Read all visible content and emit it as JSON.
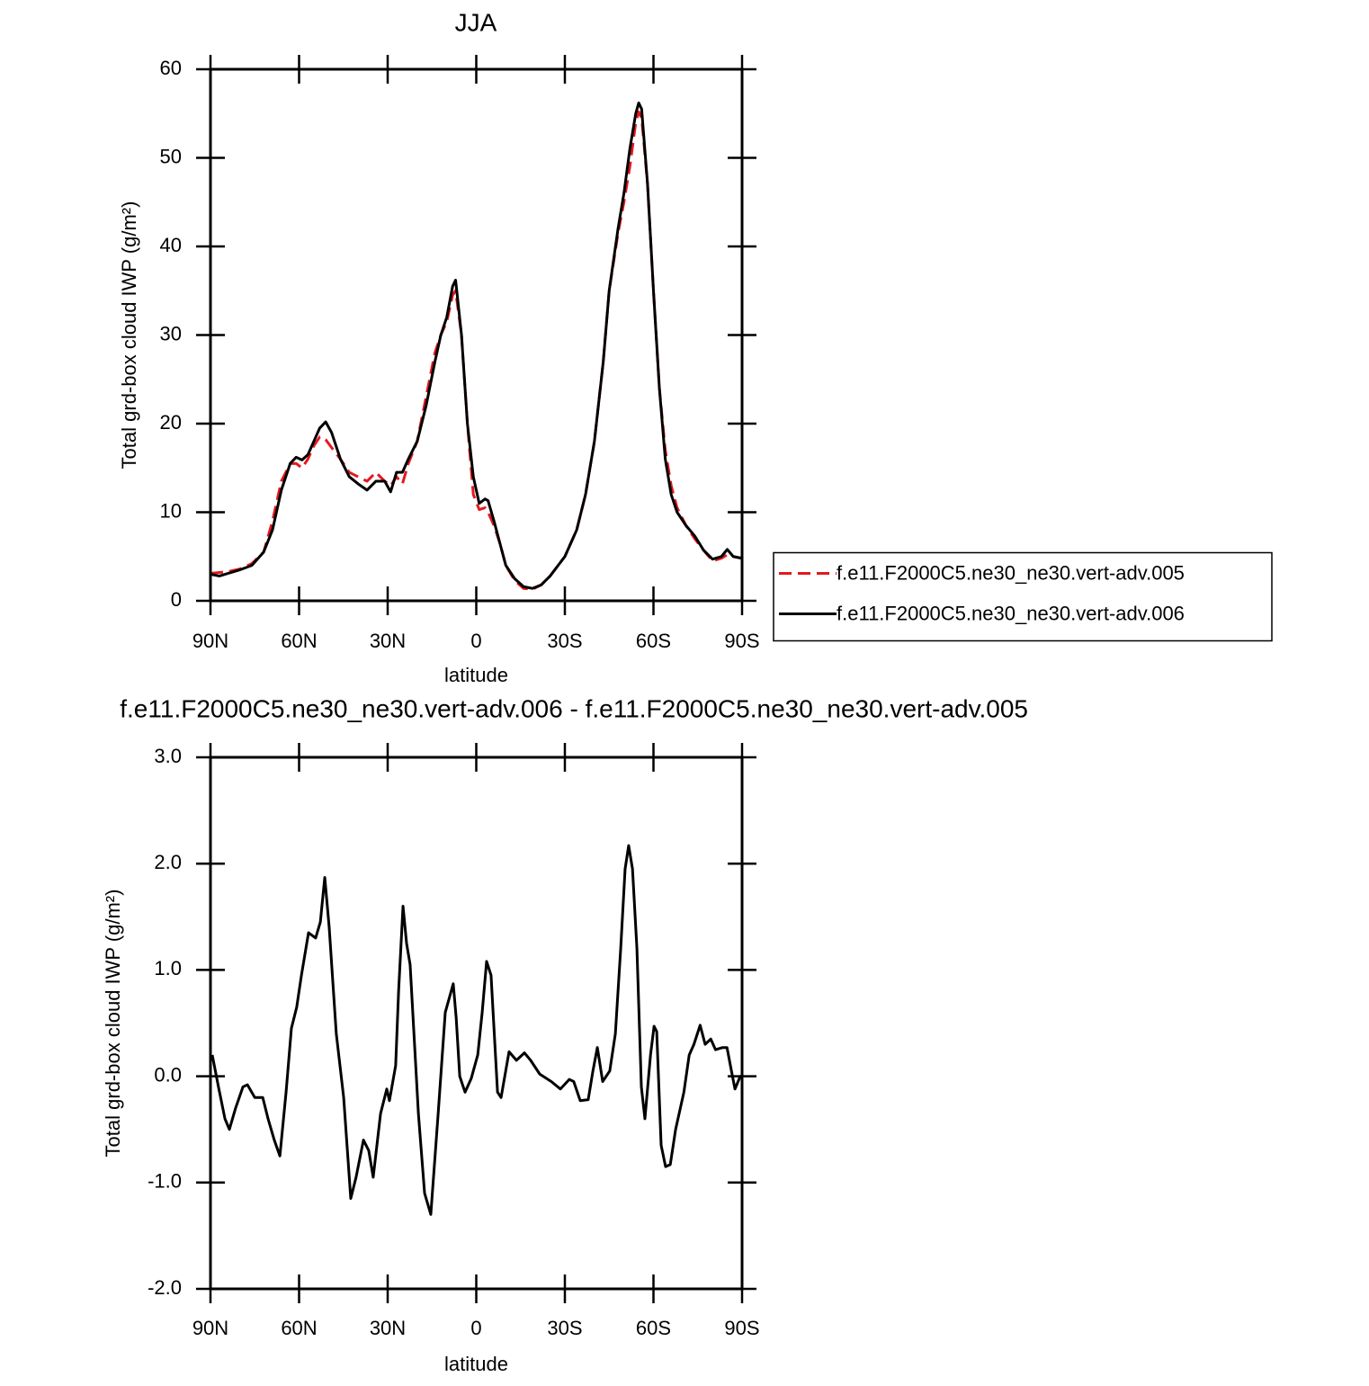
{
  "chart_data": [
    {
      "type": "line",
      "title": "JJA",
      "xlabel": "latitude",
      "ylabel": "Total grd-box cloud IWP (g/m²)",
      "xlim": [
        90,
        -90
      ],
      "xticks": [
        {
          "value": 90,
          "label": "90N"
        },
        {
          "value": 60,
          "label": "60N"
        },
        {
          "value": 30,
          "label": "30N"
        },
        0,
        {
          "value": -30,
          "label": "30S"
        },
        {
          "value": -60,
          "label": "60S"
        },
        {
          "value": -90,
          "label": "90S"
        }
      ],
      "ylim": [
        0,
        60
      ],
      "yticks": [
        0,
        10,
        20,
        30,
        40,
        50,
        60
      ],
      "legend": "right",
      "x": [
        90,
        87,
        84,
        80,
        76,
        72,
        69,
        66,
        63,
        61,
        59,
        57,
        55,
        53,
        51,
        49,
        46,
        43,
        40,
        37,
        34,
        31,
        29,
        27,
        25,
        23,
        20,
        17,
        14,
        12,
        10,
        8,
        7,
        5,
        3,
        1,
        -1,
        -3,
        -4,
        -6,
        -8,
        -10,
        -13,
        -16,
        -19,
        -22,
        -25,
        -30,
        -34,
        -37,
        -40,
        -43,
        -45,
        -48,
        -50,
        -52,
        -54,
        -55,
        -56,
        -58,
        -60,
        -62,
        -64,
        -66,
        -68,
        -71,
        -74,
        -77,
        -80,
        -83,
        -85,
        -87,
        -90
      ],
      "series": [
        {
          "name": "f.e11.F2000C5.ne30_ne30.vert-adv.005",
          "color": "#e3191e",
          "style": "dashed",
          "values": [
            3.1,
            3.2,
            3.3,
            3.6,
            4.2,
            5.5,
            9,
            13.5,
            15.5,
            15.5,
            15.0,
            16,
            17.5,
            18.5,
            18.2,
            17.3,
            16,
            14.5,
            14,
            13.5,
            14.5,
            13.5,
            13,
            14,
            13.2,
            15.5,
            18,
            23,
            28,
            30,
            31.5,
            34.5,
            35,
            30,
            20,
            12,
            10.3,
            10.5,
            10,
            8.5,
            6.5,
            4,
            2.3,
            1.4,
            1.3,
            1.8,
            2.8,
            5,
            8,
            12,
            18,
            27,
            35,
            41.5,
            45,
            49,
            54,
            55.2,
            54.5,
            47,
            35,
            24,
            17,
            13,
            10.5,
            8.5,
            7,
            5.7,
            4.5,
            4.8,
            5.2,
            5,
            4.8
          ]
        },
        {
          "name": "f.e11.F2000C5.ne30_ne30.vert-adv.006",
          "color": "#000000",
          "style": "solid",
          "values": [
            3.0,
            2.8,
            3.1,
            3.5,
            4.0,
            5.5,
            8,
            12.5,
            15.5,
            16.2,
            15.9,
            16.5,
            18,
            19.5,
            20.2,
            19,
            16,
            14,
            13.2,
            12.5,
            13.5,
            13.5,
            12.3,
            14.5,
            14.5,
            16,
            18,
            22,
            27,
            30,
            32,
            35.5,
            36.2,
            30,
            20,
            14,
            11,
            11.5,
            11.3,
            9,
            6.5,
            4,
            2.5,
            1.6,
            1.4,
            1.8,
            2.8,
            5,
            8,
            12,
            18,
            27,
            35,
            42,
            46,
            51,
            55,
            56.2,
            55.5,
            47,
            35,
            24,
            16,
            12,
            10,
            8.5,
            7.3,
            5.7,
            4.7,
            5,
            5.8,
            5,
            4.8
          ]
        }
      ]
    },
    {
      "type": "line",
      "title": "f.e11.F2000C5.ne30_ne30.vert-adv.006 - f.e11.F2000C5.ne30_ne30.vert-adv.005",
      "xlabel": "latitude",
      "ylabel": "Total grd-box cloud IWP (g/m²)",
      "xlim": [
        90,
        -90
      ],
      "xticks": [
        {
          "value": 90,
          "label": "90N"
        },
        {
          "value": 60,
          "label": "60N"
        },
        {
          "value": 30,
          "label": "30N"
        },
        0,
        {
          "value": -30,
          "label": "30S"
        },
        {
          "value": -60,
          "label": "60S"
        },
        {
          "value": -90,
          "label": "90S"
        }
      ],
      "ylim": [
        -2,
        3
      ],
      "yticks": [
        {
          "value": -2,
          "label": "-2.0"
        },
        {
          "value": -1,
          "label": "-1.0"
        },
        {
          "value": 0,
          "label": "0.0"
        },
        {
          "value": 1,
          "label": "1.0"
        },
        {
          "value": 2,
          "label": "2.0"
        },
        {
          "value": 3,
          "label": "3.0"
        }
      ],
      "color": "#000000",
      "x": [
        89.4,
        87.3,
        85.1,
        83.6,
        81.5,
        79,
        77.5,
        75,
        72.3,
        70.5,
        68.4,
        66.5,
        64.4,
        62.6,
        60.8,
        59.2,
        56.8,
        54.4,
        52.8,
        51.3,
        49.8,
        47.4,
        44.9,
        42.5,
        40.7,
        38.2,
        36.4,
        34.9,
        32.4,
        30.3,
        29.4,
        27.3,
        26.3,
        24.8,
        23.6,
        22.4,
        19.6,
        17.5,
        15.4,
        12.9,
        10.5,
        7.8,
        6.8,
        5.6,
        3.8,
        1.7,
        -0.5,
        -2,
        -3.5,
        -5,
        -7.2,
        -8.4,
        -11.1,
        -13.6,
        -16.3,
        -18.4,
        -21.5,
        -25.4,
        -28.5,
        -31.5,
        -33,
        -35.2,
        -37.9,
        -39.5,
        -41,
        -42.8,
        -45.2,
        -47.1,
        -48.9,
        -50.4,
        -51.6,
        -52.9,
        -54.4,
        -55.9,
        -57.1,
        -59,
        -60.2,
        -61.1,
        -62.6,
        -64.1,
        -65.7,
        -67.5,
        -70.3,
        -72.1,
        -73.7,
        -75.8,
        -77.5,
        -79.4,
        -81,
        -83.4,
        -84.9,
        -86.4,
        -87.6,
        -89.4,
        -90
      ],
      "values": [
        0.2,
        -0.1,
        -0.4,
        -0.5,
        -0.3,
        -0.1,
        -0.08,
        -0.2,
        -0.2,
        -0.4,
        -0.6,
        -0.75,
        -0.15,
        0.45,
        0.65,
        0.95,
        1.35,
        1.3,
        1.45,
        1.87,
        1.4,
        0.4,
        -0.2,
        -1.15,
        -0.95,
        -0.6,
        -0.7,
        -0.95,
        -0.35,
        -0.12,
        -0.23,
        0.1,
        0.8,
        1.6,
        1.25,
        1.05,
        -0.35,
        -1.1,
        -1.3,
        -0.35,
        0.6,
        0.87,
        0.55,
        0,
        -0.15,
        -0.02,
        0.2,
        0.6,
        1.08,
        0.95,
        -0.15,
        -0.2,
        0.23,
        0.15,
        0.22,
        0.15,
        0.02,
        -0.05,
        -0.12,
        -0.03,
        -0.05,
        -0.23,
        -0.22,
        0.05,
        0.27,
        -0.05,
        0.05,
        0.4,
        1.2,
        1.95,
        2.17,
        1.95,
        1.2,
        -0.1,
        -0.4,
        0.2,
        0.47,
        0.42,
        -0.65,
        -0.85,
        -0.83,
        -0.5,
        -0.15,
        0.2,
        0.3,
        0.48,
        0.3,
        0.35,
        0.25,
        0.27,
        0.27,
        0.05,
        -0.12,
        0,
        0
      ]
    }
  ]
}
